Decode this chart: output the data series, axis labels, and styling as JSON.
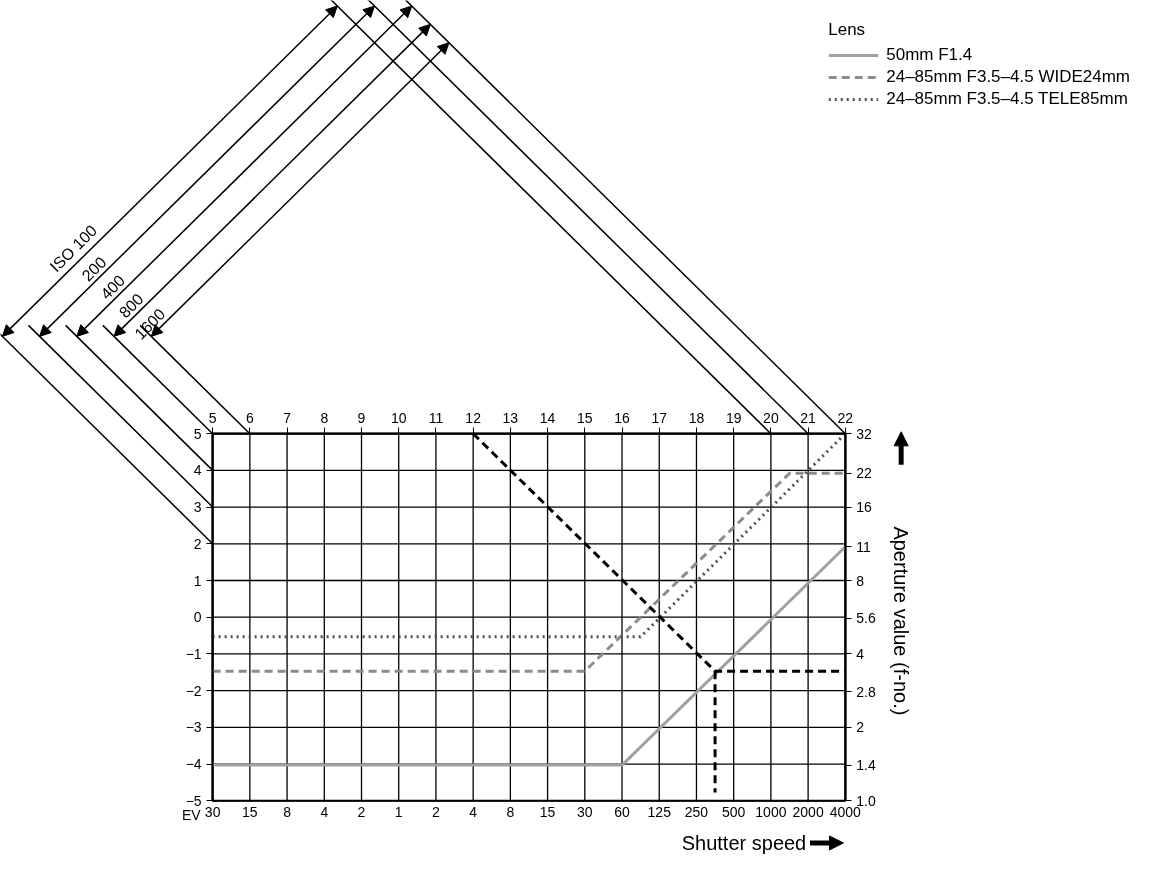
{
  "chart_data": {
    "type": "line",
    "xlabel": "Shutter speed",
    "ylabel": "EV",
    "y2label": "Aperture value (f-no.)",
    "legend_title": "Lens",
    "xlim": [
      5,
      22
    ],
    "xticks": [
      5,
      6,
      7,
      8,
      9,
      10,
      11,
      12,
      13,
      14,
      15,
      16,
      17,
      18,
      19,
      20,
      21,
      22
    ],
    "ylim": [
      -5,
      5
    ],
    "yticks": [
      -5,
      -4,
      -3,
      -2,
      -1,
      0,
      1,
      2,
      3,
      4,
      5
    ],
    "y2lim": [
      1.0,
      32
    ],
    "y2ticks": [
      {
        "value": 1,
        "label": "1.0"
      },
      1.4,
      2,
      2.8,
      4,
      5.6,
      8,
      11,
      16,
      22,
      32
    ],
    "log": "y2",
    "grid": true,
    "legend": "top right",
    "series": [
      {
        "name": "50mm F1.4",
        "color": "#a0a0a0",
        "line_style": "solid",
        "axis": "y2",
        "x": [
          5,
          16,
          22
        ],
        "values": [
          1.4,
          1.4,
          11
        ]
      },
      {
        "name": "24–85mm F3.5–4.5 WIDE24mm",
        "color": "#8c8c8c",
        "line_style": "dashed",
        "axis": "y2",
        "x": [
          5,
          15,
          20.5,
          22
        ],
        "values": [
          3.4,
          3.4,
          22,
          22
        ]
      },
      {
        "name": "24–85mm F3.5–4.5 TELE85mm",
        "color": "#505050",
        "line_style": "dotted",
        "axis": "y2",
        "x": [
          5,
          16.5,
          22
        ],
        "values": [
          4.7,
          4.7,
          32
        ]
      },
      {
        "color": "#000000",
        "line_style": "dashed",
        "axis": "y2",
        "x": [
          12,
          18.5,
          22
        ],
        "values": [
          32,
          3.4,
          3.4
        ]
      },
      {
        "color": "#000000",
        "line_style": "dashed",
        "axis": "y2",
        "x": [
          18.5,
          18.5
        ],
        "values": [
          3.4,
          1.08
        ]
      }
    ],
    "annotations": [
      "ISO 100",
      "200",
      "400",
      "800",
      "1600",
      "30",
      "15",
      "8",
      "4",
      "2",
      "1",
      "2",
      "4",
      "8",
      "15",
      "30",
      "60",
      "125",
      "250",
      "500",
      "1000",
      "2000",
      "4000"
    ]
  }
}
